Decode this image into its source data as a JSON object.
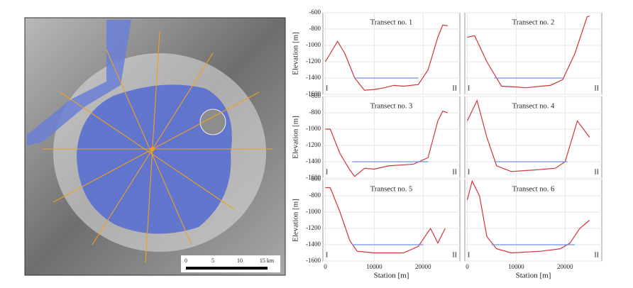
{
  "map": {
    "scale_labels": [
      "0",
      "5",
      "10",
      "15 km"
    ]
  },
  "chart_data": [
    {
      "type": "line",
      "title": "Transect no. 1",
      "ylabel": "Elevation [m]",
      "left_label": "I",
      "right_label": "II",
      "xlim": [
        -500,
        27500
      ],
      "ylim": [
        -1600,
        -600
      ],
      "xticks": [
        0,
        10000,
        20000
      ],
      "yticks": [
        -600,
        -800,
        -1000,
        -1200,
        -1400,
        -1600
      ],
      "xtick_labels": false,
      "ytick_labels": true,
      "grid": true,
      "series": [
        {
          "color": "#d0343a",
          "x": [
            0,
            2500,
            4000,
            6000,
            8000,
            10000,
            12000,
            14000,
            16000,
            19000,
            21000,
            23000,
            24000,
            25000
          ],
          "values": [
            -1200,
            -950,
            -1100,
            -1400,
            -1550,
            -1540,
            -1520,
            -1490,
            -1500,
            -1480,
            -1300,
            -900,
            -750,
            -760
          ]
        },
        {
          "color": "#6f8fe0",
          "x": [
            6000,
            19000
          ],
          "values": [
            -1400,
            -1400
          ]
        }
      ]
    },
    {
      "type": "line",
      "title": "Transect no. 2",
      "left_label": "I",
      "right_label": "II",
      "xlim": [
        -500,
        27500
      ],
      "ylim": [
        -1600,
        -600
      ],
      "xticks": [
        0,
        10000,
        20000
      ],
      "yticks": [
        -600,
        -800,
        -1000,
        -1200,
        -1400,
        -1600
      ],
      "xtick_labels": false,
      "ytick_labels": false,
      "grid": true,
      "series": [
        {
          "color": "#d0343a",
          "x": [
            0,
            1500,
            4000,
            7000,
            10000,
            12000,
            15000,
            17000,
            19500,
            22000,
            24500,
            25000
          ],
          "values": [
            -900,
            -880,
            -1200,
            -1500,
            -1510,
            -1520,
            -1500,
            -1490,
            -1420,
            -1100,
            -650,
            -640
          ]
        },
        {
          "color": "#6f8fe0",
          "x": [
            5500,
            19500
          ],
          "values": [
            -1400,
            -1400
          ]
        }
      ]
    },
    {
      "type": "line",
      "title": "Transect no. 3",
      "ylabel": "Elevation [m]",
      "left_label": "I",
      "right_label": "II",
      "xlim": [
        -500,
        27500
      ],
      "ylim": [
        -1600,
        -600
      ],
      "xticks": [
        0,
        10000,
        20000
      ],
      "yticks": [
        -600,
        -800,
        -1000,
        -1200,
        -1400,
        -1600
      ],
      "xtick_labels": false,
      "ytick_labels": true,
      "grid": true,
      "series": [
        {
          "color": "#d0343a",
          "x": [
            0,
            1000,
            3000,
            5000,
            6000,
            8000,
            10000,
            13000,
            18000,
            21000,
            23000,
            24000,
            25000
          ],
          "values": [
            -1000,
            -1000,
            -1300,
            -1500,
            -1580,
            -1480,
            -1490,
            -1450,
            -1430,
            -1350,
            -900,
            -780,
            -800
          ]
        },
        {
          "color": "#6f8fe0",
          "x": [
            5500,
            21000
          ],
          "values": [
            -1400,
            -1400
          ]
        }
      ]
    },
    {
      "type": "line",
      "title": "Transect no. 4",
      "left_label": "I",
      "right_label": "II",
      "xlim": [
        -500,
        27500
      ],
      "ylim": [
        -1600,
        -600
      ],
      "xticks": [
        0,
        10000,
        20000
      ],
      "yticks": [
        -600,
        -800,
        -1000,
        -1200,
        -1400,
        -1600
      ],
      "xtick_labels": false,
      "ytick_labels": false,
      "grid": true,
      "series": [
        {
          "color": "#d0343a",
          "x": [
            0,
            2000,
            4000,
            6000,
            9000,
            14000,
            18000,
            20000,
            22500,
            25000
          ],
          "values": [
            -900,
            -650,
            -1100,
            -1450,
            -1520,
            -1500,
            -1480,
            -1400,
            -900,
            -1100
          ]
        },
        {
          "color": "#6f8fe0",
          "x": [
            5500,
            20500
          ],
          "values": [
            -1400,
            -1400
          ]
        }
      ]
    },
    {
      "type": "line",
      "title": "Transect no. 5",
      "ylabel": "Elevation [m]",
      "xlabel": "Station [m]",
      "left_label": "I",
      "right_label": "II",
      "xlim": [
        -500,
        27500
      ],
      "ylim": [
        -1600,
        -600
      ],
      "xticks": [
        0,
        10000,
        20000
      ],
      "yticks": [
        -600,
        -800,
        -1000,
        -1200,
        -1400,
        -1600
      ],
      "xtick_labels": true,
      "ytick_labels": true,
      "grid": true,
      "series": [
        {
          "color": "#d0343a",
          "x": [
            0,
            1000,
            3000,
            5000,
            6500,
            10000,
            16000,
            19000,
            21500,
            23000,
            24500
          ],
          "values": [
            -700,
            -700,
            -1000,
            -1350,
            -1480,
            -1500,
            -1500,
            -1420,
            -1200,
            -1380,
            -1200
          ]
        },
        {
          "color": "#6f8fe0",
          "x": [
            5500,
            20000
          ],
          "values": [
            -1400,
            -1400
          ]
        }
      ]
    },
    {
      "type": "line",
      "title": "Transect no. 6",
      "xlabel": "Station [m]",
      "left_label": "I",
      "right_label": "II",
      "xlim": [
        -500,
        27500
      ],
      "ylim": [
        -1600,
        -600
      ],
      "xticks": [
        0,
        10000,
        20000
      ],
      "yticks": [
        -600,
        -800,
        -1000,
        -1200,
        -1400,
        -1600
      ],
      "xtick_labels": true,
      "ytick_labels": false,
      "grid": true,
      "series": [
        {
          "color": "#d0343a",
          "x": [
            0,
            1000,
            2500,
            4000,
            6000,
            9000,
            15000,
            19000,
            21000,
            23000,
            25000
          ],
          "values": [
            -850,
            -620,
            -800,
            -1300,
            -1450,
            -1500,
            -1480,
            -1450,
            -1380,
            -1200,
            -1100
          ]
        },
        {
          "color": "#6f8fe0",
          "x": [
            5000,
            22000
          ],
          "values": [
            -1400,
            -1400
          ]
        }
      ]
    }
  ]
}
